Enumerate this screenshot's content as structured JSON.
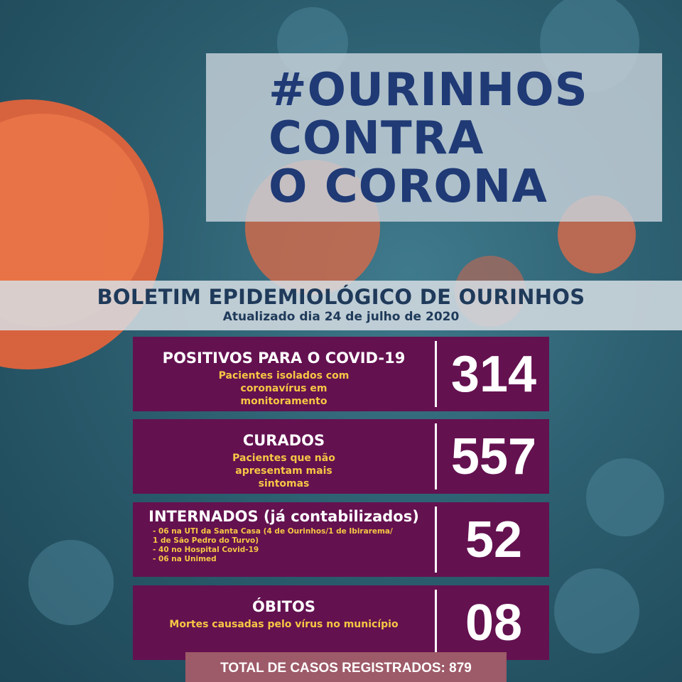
{
  "header": {
    "lines": [
      "#OURINHOS",
      "CONTRA",
      "O CORONA"
    ]
  },
  "banner": {
    "title": "BOLETIM EPIDEMIOLÓGICO DE OURINHOS",
    "subtitle": "Atualizado dia 24 de julho de 2020"
  },
  "cards": [
    {
      "title": "POSITIVOS PARA O COVID-19",
      "description": "Pacientes isolados com coronavírus em monitoramento",
      "value": "314"
    },
    {
      "title": "CURADOS",
      "description": "Pacientes que não apresentam mais sintomas",
      "value": "557"
    },
    {
      "title": "INTERNADOS (já contabilizados)",
      "details": [
        "- 06 na UTI  da Santa Casa  (4 de Ourinhos/1 de Ibirarema/",
        "1 de São Pedro do Turvo)",
        "- 40 no Hospital Covid-19",
        "- 06 na Unimed"
      ],
      "value": "52"
    },
    {
      "title": "ÓBITOS",
      "description": "Mortes causadas pelo vírus no município",
      "value": "08"
    }
  ],
  "total": {
    "label": "TOTAL DE CASOS REGISTRADOS: 879"
  },
  "colors": {
    "card": "#641150",
    "accent_text": "#f6c744",
    "title": "#1f3a75",
    "total_bar": "#9d5a68"
  }
}
